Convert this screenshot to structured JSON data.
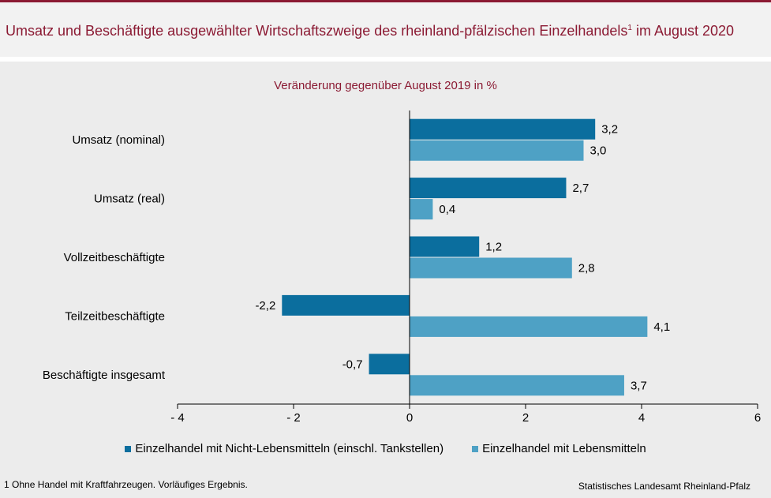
{
  "header": {
    "title": "Umsatz und Beschäftigte ausgewählter Wirtschaftszweige des rheinland-pfälzischen Einzelhandels",
    "title_sup": "1",
    "title_end": " im August 2020"
  },
  "footer": {
    "footnote": "1 Ohne Handel mit Kraftfahrzeugen. Vorläufiges Ergebnis.",
    "source": "Statistisches Landesamt Rheinland-Pfalz"
  },
  "chart_data": {
    "type": "bar",
    "orientation": "horizontal",
    "subtitle": "Veränderung gegenüber August 2019 in %",
    "categories": [
      "Umsatz (nominal)",
      "Umsatz (real)",
      "Vollzeitbeschäftigte",
      "Teilzeitbeschäftigte",
      "Beschäftigte insgesamt"
    ],
    "series": [
      {
        "name": "Einzelhandel mit Nicht-Lebensmitteln (einschl. Tankstellen)",
        "values": [
          3.2,
          2.7,
          1.2,
          -2.2,
          -0.7
        ],
        "labels": [
          "3,2",
          "2,7",
          "1,2",
          "-2,2",
          "-0,7"
        ],
        "color": "#0b6e9e"
      },
      {
        "name": "Einzelhandel mit Lebensmitteln",
        "values": [
          3.0,
          0.4,
          2.8,
          4.1,
          3.7
        ],
        "labels": [
          "3,0",
          "0,4",
          "2,8",
          "4,1",
          "3,7"
        ],
        "color": "#4ea1c5"
      }
    ],
    "xlim": [
      -4,
      6
    ],
    "xticks": [
      -4,
      -2,
      0,
      2,
      4,
      6
    ],
    "xtick_labels": [
      "- 4",
      "- 2",
      "0",
      "2",
      "4",
      "6"
    ],
    "grid": false,
    "legend_position": "bottom"
  }
}
